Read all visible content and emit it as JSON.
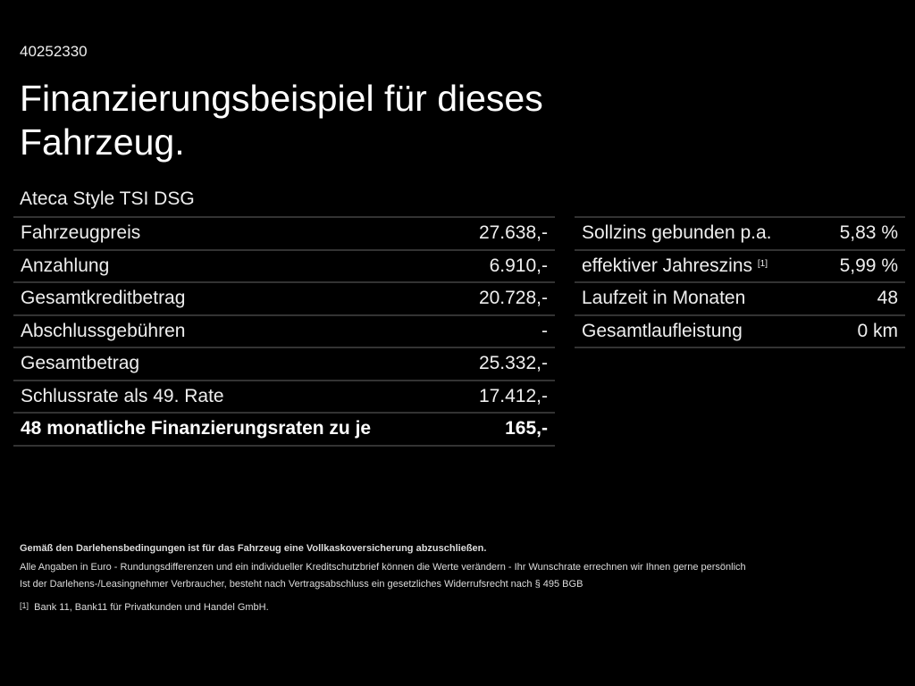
{
  "code": "40252330",
  "title": "Finanzierungsbeispiel für dieses Fahrzeug.",
  "model": "Ateca Style TSI DSG",
  "left_table": [
    {
      "label": "Fahrzeugpreis",
      "value": "27.638,-"
    },
    {
      "label": "Anzahlung",
      "value": "6.910,-"
    },
    {
      "label": "Gesamtkreditbetrag",
      "value": "20.728,-"
    },
    {
      "label": "Abschlussgebühren",
      "value": "-"
    },
    {
      "label": "Gesamtbetrag",
      "value": "25.332,-"
    },
    {
      "label": "Schlussrate als 49. Rate",
      "value": "17.412,-"
    },
    {
      "label": "48 monatliche Finanzierungsraten zu je",
      "value": "165,-"
    }
  ],
  "right_table": [
    {
      "label": "Sollzins gebunden p.a.",
      "sup": "",
      "value": "5,83 %"
    },
    {
      "label": "effektiver Jahreszins",
      "sup": "[1]",
      "value": "5,99 %"
    },
    {
      "label": "Laufzeit in Monaten",
      "sup": "",
      "value": "48"
    },
    {
      "label": "Gesamtlaufleistung",
      "sup": "",
      "value": "0 km"
    }
  ],
  "footnotes": {
    "insurance": "Gemäß den Darlehensbedingungen ist für das Fahrzeug eine Vollkaskoversicherung abzuschließen.",
    "euro": "Alle Angaben in Euro - Rundungsdifferenzen und ein individueller Kreditschutzbrief können die Werte verändern - Ihr Wunschrate errechnen wir Ihnen gerne persönlich",
    "withdrawal": "Ist der Darlehens-/Leasingnehmer Verbraucher, besteht nach Vertragsabschluss ein gesetzliches Widerrufsrecht nach § 495 BGB",
    "ref_marker": "[1]",
    "ref_text": "Bank 11, Bank11 für Privatkunden und Handel GmbH."
  }
}
